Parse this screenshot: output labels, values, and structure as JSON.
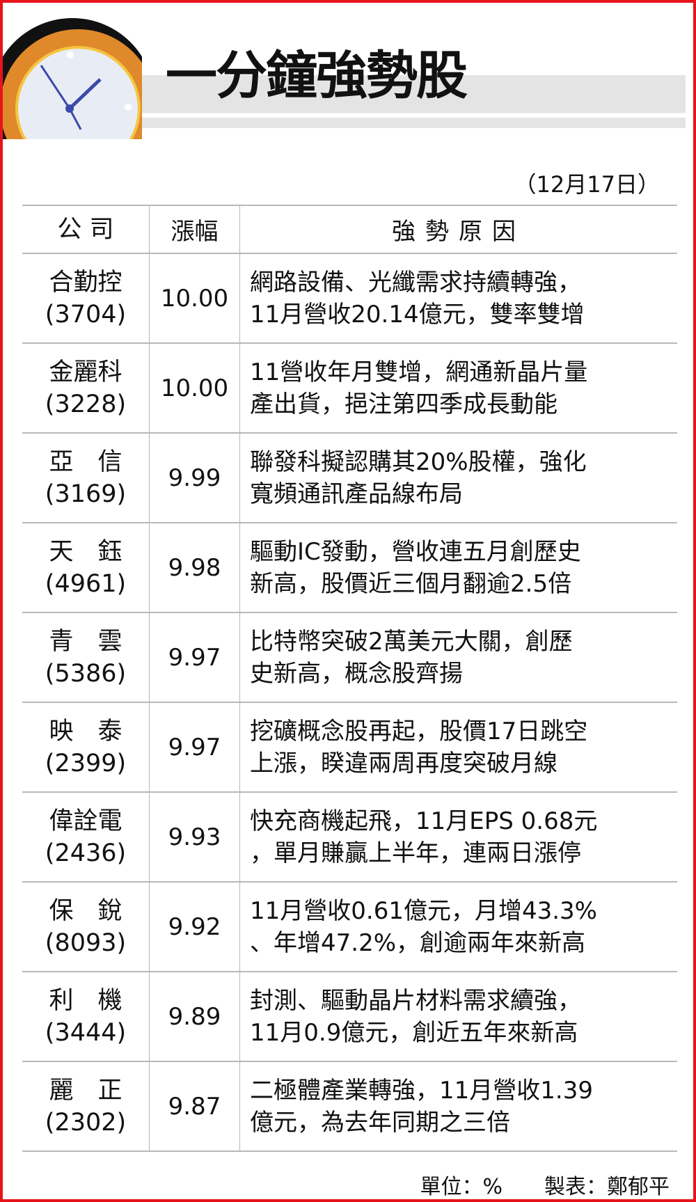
{
  "header": {
    "title": "一分鐘強勢股",
    "date": "（12月17日）"
  },
  "table": {
    "columns": [
      "公 司",
      "漲幅",
      "強勢原因"
    ],
    "rows": [
      {
        "name": "合勤控",
        "code": "(3704)",
        "change": "10.00",
        "reason": [
          "網路設備、光纖需求持續轉強，",
          "11月營收20.14億元，雙率雙增"
        ]
      },
      {
        "name": "金麗科",
        "code": "(3228)",
        "change": "10.00",
        "reason": [
          "11營收年月雙增，網通新晶片量",
          "產出貨，挹注第四季成長動能"
        ]
      },
      {
        "name": "亞　信",
        "code": "(3169)",
        "change": "9.99",
        "reason": [
          "聯發科擬認購其20%股權，強化",
          "寬頻通訊產品線布局"
        ]
      },
      {
        "name": "天　鈺",
        "code": "(4961)",
        "change": "9.98",
        "reason": [
          "驅動IC發動，營收連五月創歷史",
          "新高，股價近三個月翻逾2.5倍"
        ]
      },
      {
        "name": "青　雲",
        "code": "(5386)",
        "change": "9.97",
        "reason": [
          "比特幣突破2萬美元大關，創歷",
          "史新高，概念股齊揚"
        ]
      },
      {
        "name": "映　泰",
        "code": "(2399)",
        "change": "9.97",
        "reason": [
          "挖礦概念股再起，股價17日跳空",
          "上漲，睽違兩周再度突破月線"
        ]
      },
      {
        "name": "偉詮電",
        "code": "(2436)",
        "change": "9.93",
        "reason": [
          "快充商機起飛，11月EPS 0.68元",
          "，單月賺贏上半年，連兩日漲停"
        ]
      },
      {
        "name": "保　銳",
        "code": "(8093)",
        "change": "9.92",
        "reason": [
          "11月營收0.61億元，月增43.3%",
          "、年增47.2%，創逾兩年來新高"
        ]
      },
      {
        "name": "利　機",
        "code": "(3444)",
        "change": "9.89",
        "reason": [
          "封測、驅動晶片材料需求續強，",
          "11月0.9億元，創近五年來新高"
        ]
      },
      {
        "name": "麗　正",
        "code": "(2302)",
        "change": "9.87",
        "reason": [
          "二極體產業轉強，11月營收1.39",
          "億元，為去年同期之三倍"
        ]
      }
    ]
  },
  "footer": {
    "unit": "單位：%",
    "author": "製表：鄭郁平"
  },
  "colors": {
    "border": "#e8141b",
    "clock_rim": "#e0892a",
    "hands": "#3b4aa8"
  }
}
